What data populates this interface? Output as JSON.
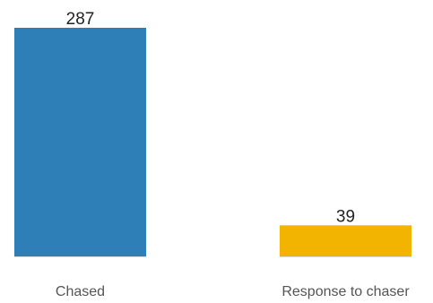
{
  "chart_data": {
    "type": "bar",
    "categories": [
      "Chased",
      "Response to chaser"
    ],
    "values": [
      287,
      39
    ],
    "colors": [
      "#2e7fb8",
      "#f2b400"
    ],
    "data_labels": [
      "287",
      "39"
    ],
    "title": "",
    "xlabel": "",
    "ylabel": "",
    "ylim": [
      0,
      287
    ],
    "grid": false,
    "legend": "none"
  }
}
